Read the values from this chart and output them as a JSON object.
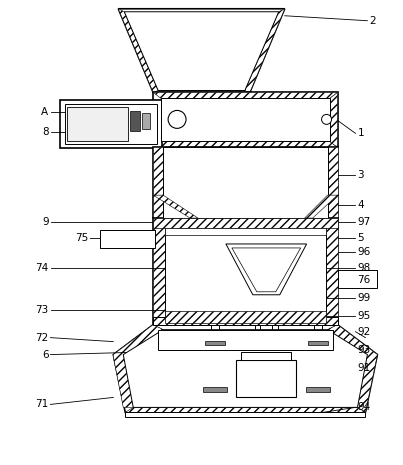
{
  "figure_width": 4.03,
  "figure_height": 4.65,
  "dpi": 100,
  "bg_color": "#ffffff",
  "line_color": "#000000"
}
